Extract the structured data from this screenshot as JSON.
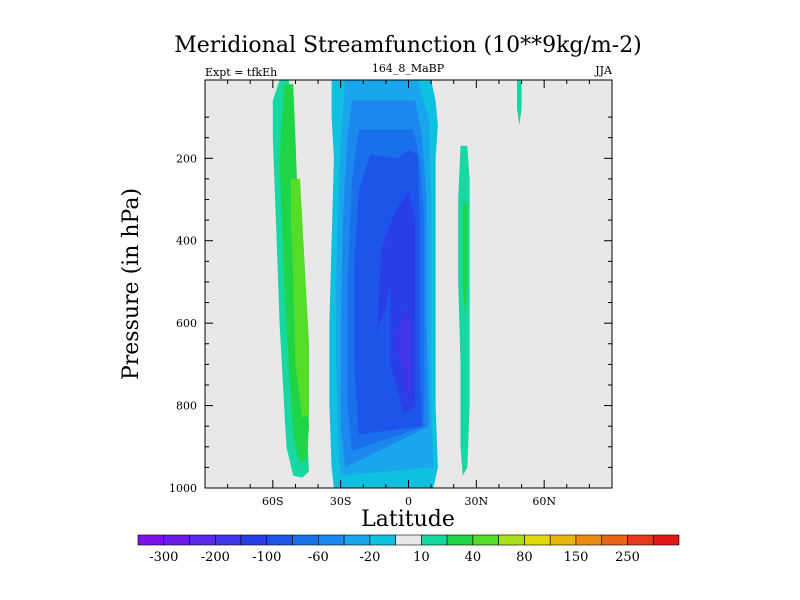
{
  "chart_data": {
    "type": "heatmap",
    "title": "Meridional Streamfunction (10**9kg/m-2)",
    "subtitle_left": "Expt = tfkEh",
    "subtitle_center": "164_8_MaBP",
    "subtitle_right": "JJA",
    "xlabel": "Latitude",
    "ylabel": "Pressure (in hPa)",
    "xlim": [
      -90,
      90
    ],
    "ylim": [
      1000,
      10
    ],
    "x_ticks": [
      {
        "value": -60,
        "label": "60S"
      },
      {
        "value": -30,
        "label": "30S"
      },
      {
        "value": 0,
        "label": "0"
      },
      {
        "value": 30,
        "label": "30N"
      },
      {
        "value": 60,
        "label": "60N"
      }
    ],
    "y_ticks": [
      {
        "value": 200,
        "label": "200"
      },
      {
        "value": 400,
        "label": "400"
      },
      {
        "value": 600,
        "label": "600"
      },
      {
        "value": 800,
        "label": "800"
      },
      {
        "value": 1000,
        "label": "1000"
      }
    ],
    "colorbar": {
      "levels": [
        -300,
        -250,
        -200,
        -150,
        -100,
        -80,
        -60,
        -40,
        -20,
        -10,
        10,
        20,
        40,
        60,
        80,
        100,
        150,
        200,
        250,
        300
      ],
      "colors": [
        "#7d10e8",
        "#6d1ce8",
        "#5a2ae8",
        "#3f35e6",
        "#2a3ee6",
        "#1d55ea",
        "#1a6fec",
        "#1c88ee",
        "#1aa6ec",
        "#10c0e0",
        "#e8e8e8",
        "#17d8a0",
        "#1fd445",
        "#55dc28",
        "#a8e020",
        "#e0d80c",
        "#e8b410",
        "#ea8c14",
        "#e86418",
        "#e63a1c",
        "#e01818"
      ],
      "labels": [
        "-300",
        "-200",
        "-100",
        "-60",
        "-20",
        "10",
        "40",
        "80",
        "150",
        "250"
      ],
      "label_after_level_index": [
        0,
        2,
        4,
        6,
        8,
        10,
        12,
        14,
        16,
        18
      ]
    },
    "background_color": "#e8e8e8",
    "regions": [
      {
        "value": 15,
        "lower_bound": 10,
        "points": [
          [
            -57,
            10
          ],
          [
            -53,
            10
          ],
          [
            -52,
            60
          ],
          [
            -51,
            150
          ],
          [
            -50,
            300
          ],
          [
            -48,
            500
          ],
          [
            -46,
            700
          ],
          [
            -45,
            850
          ],
          [
            -44,
            960
          ],
          [
            -47,
            975
          ],
          [
            -51,
            970
          ],
          [
            -54,
            900
          ],
          [
            -55,
            800
          ],
          [
            -57,
            600
          ],
          [
            -58,
            450
          ],
          [
            -59,
            300
          ],
          [
            -60,
            150
          ],
          [
            -60,
            60
          ]
        ]
      },
      {
        "value": 30,
        "lower_bound": 20,
        "points": [
          [
            -55,
            20
          ],
          [
            -51,
            20
          ],
          [
            -50,
            150
          ],
          [
            -49,
            300
          ],
          [
            -47,
            500
          ],
          [
            -45,
            700
          ],
          [
            -44,
            850
          ],
          [
            -45,
            930
          ],
          [
            -48,
            940
          ],
          [
            -51,
            870
          ],
          [
            -53,
            700
          ],
          [
            -55,
            500
          ],
          [
            -56,
            350
          ],
          [
            -57,
            200
          ]
        ]
      },
      {
        "value": 50,
        "lower_bound": 40,
        "points": [
          [
            -52,
            250
          ],
          [
            -48,
            250
          ],
          [
            -46,
            450
          ],
          [
            -44,
            650
          ],
          [
            -44,
            820
          ],
          [
            -47,
            830
          ],
          [
            -50,
            700
          ],
          [
            -51,
            500
          ],
          [
            -52,
            350
          ]
        ]
      },
      {
        "value": 15,
        "lower_bound": 10,
        "points": [
          [
            23,
            170
          ],
          [
            26,
            170
          ],
          [
            27,
            250
          ],
          [
            27,
            500
          ],
          [
            27,
            800
          ],
          [
            26,
            950
          ],
          [
            24,
            970
          ],
          [
            23,
            900
          ],
          [
            23,
            700
          ],
          [
            22,
            500
          ],
          [
            22,
            300
          ]
        ]
      },
      {
        "value": 30,
        "lower_bound": 20,
        "points": [
          [
            24,
            310
          ],
          [
            26,
            310
          ],
          [
            26,
            500
          ],
          [
            25,
            580
          ],
          [
            24,
            500
          ]
        ]
      },
      {
        "value": 15,
        "lower_bound": 10,
        "points": [
          [
            48,
            10
          ],
          [
            50,
            10
          ],
          [
            50,
            80
          ],
          [
            49,
            120
          ],
          [
            48,
            80
          ]
        ]
      },
      {
        "value": 15,
        "lower_bound": 10,
        "points": [
          [
            7,
            10
          ],
          [
            8,
            10
          ],
          [
            8,
            60
          ],
          [
            7,
            60
          ]
        ]
      },
      {
        "value": -15,
        "lower_bound": -20,
        "points": [
          [
            -34,
            10
          ],
          [
            10,
            10
          ],
          [
            12,
            60
          ],
          [
            13,
            120
          ],
          [
            12,
            200
          ],
          [
            12,
            400
          ],
          [
            12,
            600
          ],
          [
            12,
            800
          ],
          [
            13,
            950
          ],
          [
            11,
            1000
          ],
          [
            -33,
            1000
          ],
          [
            -34,
            950
          ],
          [
            -35,
            800
          ],
          [
            -35,
            600
          ],
          [
            -34,
            400
          ],
          [
            -33,
            200
          ],
          [
            -34,
            100
          ]
        ]
      },
      {
        "value": -30,
        "lower_bound": -40,
        "points": [
          [
            -28,
            10
          ],
          [
            4,
            10
          ],
          [
            6,
            50
          ],
          [
            9,
            100
          ],
          [
            10,
            300
          ],
          [
            10,
            600
          ],
          [
            10,
            800
          ],
          [
            11,
            950
          ],
          [
            -30,
            970
          ],
          [
            -31,
            900
          ],
          [
            -32,
            700
          ],
          [
            -32,
            500
          ],
          [
            -31,
            300
          ],
          [
            -30,
            150
          ]
        ]
      },
      {
        "value": -50,
        "lower_bound": -60,
        "points": [
          [
            -25,
            60
          ],
          [
            3,
            60
          ],
          [
            6,
            150
          ],
          [
            8,
            300
          ],
          [
            8,
            600
          ],
          [
            9,
            850
          ],
          [
            -28,
            950
          ],
          [
            -30,
            850
          ],
          [
            -30,
            600
          ],
          [
            -29,
            350
          ],
          [
            -27,
            150
          ]
        ]
      },
      {
        "value": -70,
        "lower_bound": -80,
        "points": [
          [
            -22,
            130
          ],
          [
            2,
            130
          ],
          [
            5,
            200
          ],
          [
            7,
            350
          ],
          [
            7,
            700
          ],
          [
            7,
            850
          ],
          [
            -25,
            910
          ],
          [
            -27,
            800
          ],
          [
            -27,
            500
          ],
          [
            -25,
            250
          ]
        ]
      },
      {
        "value": -90,
        "lower_bound": -100,
        "points": [
          [
            -17,
            190
          ],
          [
            -5,
            200
          ],
          [
            0,
            180
          ],
          [
            4,
            190
          ],
          [
            5,
            350
          ],
          [
            5,
            700
          ],
          [
            6,
            850
          ],
          [
            -22,
            870
          ],
          [
            -24,
            700
          ],
          [
            -24,
            450
          ],
          [
            -22,
            280
          ]
        ]
      },
      {
        "value": -120,
        "lower_bound": -150,
        "points": [
          [
            0,
            280
          ],
          [
            3,
            350
          ],
          [
            3,
            600
          ],
          [
            3,
            800
          ],
          [
            -2,
            820
          ],
          [
            -8,
            700
          ],
          [
            -8,
            500
          ],
          [
            -10,
            560
          ],
          [
            -14,
            620
          ],
          [
            -12,
            420
          ],
          [
            -6,
            330
          ]
        ]
      },
      {
        "value": -170,
        "lower_bound": -200,
        "points": [
          [
            -2,
            560
          ],
          [
            1,
            600
          ],
          [
            1,
            760
          ],
          [
            -1,
            780
          ],
          [
            -3,
            700
          ],
          [
            -6,
            640
          ],
          [
            -3,
            600
          ]
        ]
      }
    ]
  }
}
